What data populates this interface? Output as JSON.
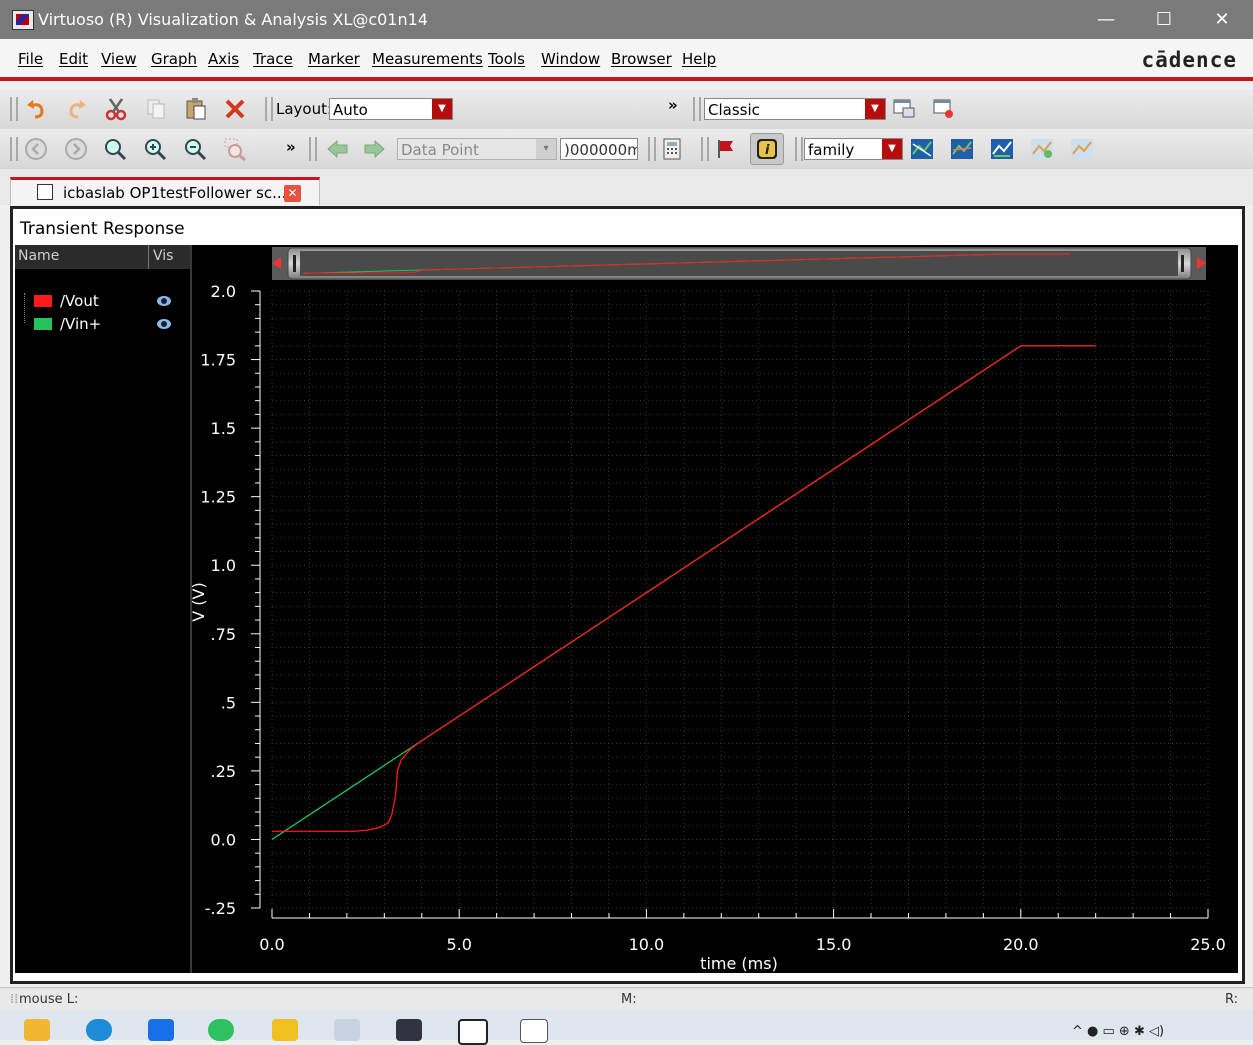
{
  "window": {
    "title": "Virtuoso (R) Visualization & Analysis XL@c01n14"
  },
  "menu": {
    "items": [
      "File",
      "Edit",
      "View",
      "Graph",
      "Axis",
      "Trace",
      "Marker",
      "Measurements",
      "Tools",
      "Window",
      "Browser",
      "Help"
    ],
    "logo": "cādence"
  },
  "toolbar1": {
    "layout_label": "Layout:",
    "layout_value": "Auto",
    "more": "»",
    "style_value": "Classic"
  },
  "toolbar2": {
    "more": "»",
    "marker_type": "Data Point",
    "marker_value": ")000000m",
    "family_value": "family"
  },
  "tab": {
    "label": "icbaslab OP1testFollower sc..."
  },
  "plot": {
    "title": "Transient Response",
    "legend_header": {
      "name": "Name",
      "vis": "Vis"
    },
    "traces": [
      {
        "name": "/Vout",
        "color": "#ff1a1a"
      },
      {
        "name": "/Vin+",
        "color": "#22c35a"
      }
    ]
  },
  "chart_data": {
    "type": "line",
    "title": "Transient Response",
    "xlabel": "time (ms)",
    "ylabel": "V (V)",
    "xlim": [
      0,
      25
    ],
    "ylim": [
      -0.25,
      2.0
    ],
    "xticks": [
      "0.0",
      "5.0",
      "10.0",
      "15.0",
      "20.0",
      "25.0"
    ],
    "yticks": [
      "2.0",
      "1.75",
      "1.5",
      "1.25",
      "1.0",
      ".75",
      ".5",
      ".25",
      "0.0",
      "-.25"
    ],
    "grid": true,
    "series": [
      {
        "name": "/Vin+",
        "color": "#22c35a",
        "x": [
          0,
          20,
          22
        ],
        "y": [
          0.0,
          1.8,
          1.8
        ]
      },
      {
        "name": "/Vout",
        "color": "#ff1a1a",
        "x": [
          0,
          2.2,
          2.6,
          2.9,
          3.1,
          3.2,
          3.3,
          3.35,
          3.45,
          3.7,
          4.0,
          4.5,
          20,
          22
        ],
        "y": [
          0.03,
          0.03,
          0.035,
          0.045,
          0.06,
          0.09,
          0.16,
          0.25,
          0.29,
          0.33,
          0.36,
          0.405,
          1.8,
          1.8
        ]
      }
    ]
  },
  "status": {
    "left": "mouse L:",
    "middle": "M:",
    "right": "R:"
  }
}
